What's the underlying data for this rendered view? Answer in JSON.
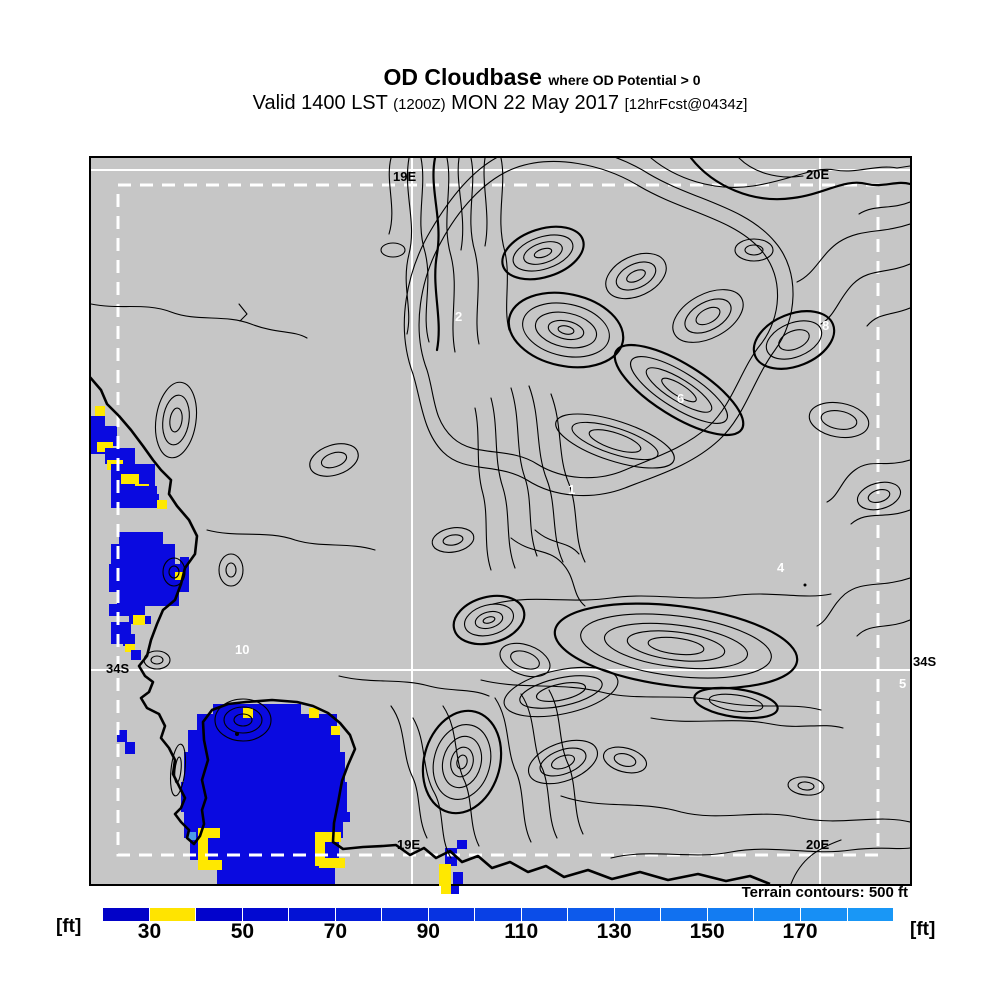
{
  "title": {
    "main": "OD Cloudbase",
    "condition": "where OD Potential > 0",
    "valid_prefix": "Valid 1400 LST",
    "valid_zulu": "(1200Z)",
    "valid_date": "MON 22 May 2017",
    "forecast_info": "[12hrFcst@0434z]"
  },
  "map": {
    "grid_labels": {
      "lon_19e_top": "19E",
      "lon_20e_top": "20E",
      "lon_19e_bottom": "19E",
      "lon_20e_bottom": "20E",
      "lat_34s_left": "34S",
      "lat_34s_right": "34S"
    },
    "spot_values": [
      "2",
      "8",
      "6",
      "1",
      "4",
      "10",
      "5"
    ],
    "note": "Terrain contours: 500 ft",
    "contour_interval": "500 ft"
  },
  "colorbar": {
    "unit_left": "[ft]",
    "unit_right": "[ft]",
    "ticks": [
      {
        "label": "30",
        "boundary": 1
      },
      {
        "label": "50",
        "boundary": 3
      },
      {
        "label": "70",
        "boundary": 5
      },
      {
        "label": "90",
        "boundary": 7
      },
      {
        "label": "110",
        "boundary": 9
      },
      {
        "label": "130",
        "boundary": 11
      },
      {
        "label": "150",
        "boundary": 13
      },
      {
        "label": "170",
        "boundary": 15
      }
    ],
    "segments": [
      "#0202c8",
      "#ffe400",
      "#0203cc",
      "#0209d1",
      "#0312d5",
      "#041cd9",
      "#0527dd",
      "#0733e1",
      "#0940e5",
      "#0b4de8",
      "#0d5aeb",
      "#0f66ee",
      "#1171f0",
      "#137cf2",
      "#1586f3",
      "#178ff5",
      "#1997f6"
    ]
  },
  "colors": {
    "map-bg": "#c6c6c6",
    "cloud-blue": "#0a0ae0",
    "cloud-yellow": "#ffe800",
    "cloud-lightblue": "#4d9be8",
    "contour": "#000000",
    "grid-white": "#ffffff"
  }
}
